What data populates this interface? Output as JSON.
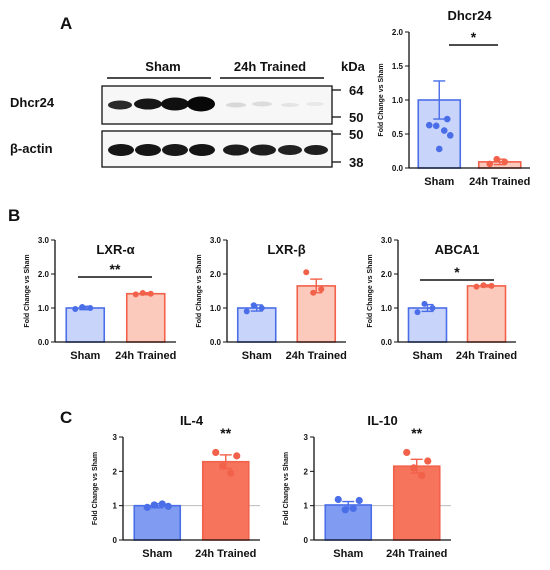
{
  "panel_labels": [
    "A",
    "B",
    "C"
  ],
  "colors": {
    "sham": "#4a6ee8",
    "trained": "#f2614a",
    "sham_fill": "#c9d4fb",
    "trained_fill": "#fcc9bd",
    "text": "#111111"
  },
  "western_blot": {
    "groups": [
      "Sham",
      "24h Trained"
    ],
    "unit_label": "kDa",
    "rows": [
      {
        "protein": "Dhcr24",
        "markers": [
          "64",
          "50"
        ]
      },
      {
        "protein": "β-actin",
        "markers": [
          "50",
          "38"
        ]
      }
    ]
  },
  "chart_data": [
    {
      "id": "dhcr24",
      "type": "bar",
      "title": "Dhcr24",
      "categories": [
        "Sham",
        "24h Trained"
      ],
      "values": [
        1.0,
        0.09
      ],
      "errors": [
        0.28,
        0.04
      ],
      "points": [
        [
          0.63,
          0.62,
          0.55,
          0.48,
          0.28,
          0.72
        ],
        [
          0.06,
          0.13,
          0.09
        ]
      ],
      "ylabel": "Fold Change vs Sham",
      "ylim": [
        0,
        2.0
      ],
      "yticks": [
        "0.0",
        "0.5",
        "1.0",
        "1.5",
        "2.0"
      ],
      "significance": "*",
      "style": "A"
    },
    {
      "id": "lxra",
      "type": "bar",
      "title": "LXR-α",
      "categories": [
        "Sham",
        "24h Trained"
      ],
      "values": [
        1.0,
        1.42
      ],
      "errors": [
        0.05,
        0.03
      ],
      "points": [
        [
          0.97,
          1.03,
          1.0
        ],
        [
          1.4,
          1.44,
          1.42
        ]
      ],
      "ylabel": "Fold Change vs Sham",
      "ylim": [
        0,
        3.0
      ],
      "yticks": [
        "0.0",
        "1.0",
        "2.0",
        "3.0"
      ],
      "significance": "**",
      "style": "B"
    },
    {
      "id": "lxrb",
      "type": "bar",
      "title": "LXR-β",
      "categories": [
        "Sham",
        "24h Trained"
      ],
      "values": [
        1.0,
        1.65
      ],
      "errors": [
        0.09,
        0.2
      ],
      "points": [
        [
          0.9,
          1.08,
          1.0
        ],
        [
          2.05,
          1.45,
          1.55
        ]
      ],
      "ylabel": "Fold Change vs Sham",
      "ylim": [
        0,
        3.0
      ],
      "yticks": [
        "0.0",
        "1.0",
        "2.0",
        "3.0"
      ],
      "significance": "",
      "style": "B"
    },
    {
      "id": "abca1",
      "type": "bar",
      "title": "ABCA1",
      "categories": [
        "Sham",
        "24h Trained"
      ],
      "values": [
        1.0,
        1.65
      ],
      "errors": [
        0.1,
        0.03
      ],
      "points": [
        [
          0.88,
          1.12,
          1.0
        ],
        [
          1.63,
          1.67,
          1.65
        ]
      ],
      "ylabel": "Fold Change vs Sham",
      "ylim": [
        0,
        3.0
      ],
      "yticks": [
        "0.0",
        "1.0",
        "2.0",
        "3.0"
      ],
      "significance": "*",
      "style": "B"
    },
    {
      "id": "il4",
      "type": "bar",
      "title": "IL-4",
      "categories": [
        "Sham",
        "24h Trained"
      ],
      "values": [
        1.0,
        2.28
      ],
      "errors": [
        0.06,
        0.2
      ],
      "points": [
        [
          0.95,
          1.02,
          1.05,
          0.98
        ],
        [
          2.55,
          2.15,
          1.95,
          2.45
        ]
      ],
      "ylabel": "Fold Change vs Sham",
      "ylim": [
        0,
        3.0
      ],
      "yticks": [
        "0",
        "1",
        "2",
        "3"
      ],
      "significance": "**",
      "style": "C"
    },
    {
      "id": "il10",
      "type": "bar",
      "title": "IL-10",
      "categories": [
        "Sham",
        "24h Trained"
      ],
      "values": [
        1.02,
        2.15
      ],
      "errors": [
        0.1,
        0.2
      ],
      "points": [
        [
          1.18,
          0.88,
          0.92,
          1.15
        ],
        [
          2.55,
          2.1,
          1.88,
          2.3
        ]
      ],
      "ylabel": "Fold Change vs Sham",
      "ylim": [
        0,
        3.0
      ],
      "yticks": [
        "0",
        "1",
        "2",
        "3"
      ],
      "significance": "**",
      "style": "C"
    }
  ]
}
